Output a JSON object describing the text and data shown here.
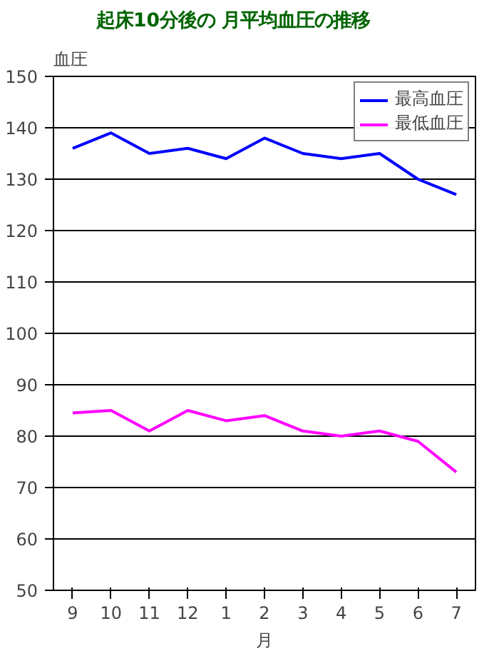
{
  "chart_data": {
    "type": "line",
    "title": "起床10分後の 月平均血圧の推移",
    "xlabel": "月",
    "ylabel": "血圧",
    "categories": [
      "9",
      "10",
      "11",
      "12",
      "1",
      "2",
      "3",
      "4",
      "5",
      "6",
      "7"
    ],
    "series": [
      {
        "name": "最高血圧",
        "color": "#0000ff",
        "values": [
          136,
          139,
          135,
          136,
          134,
          138,
          135,
          134,
          135,
          130,
          127
        ]
      },
      {
        "name": "最低血圧",
        "color": "#ff00ff",
        "values": [
          84.5,
          85,
          81,
          85,
          83,
          84,
          81,
          80,
          81,
          79,
          73
        ]
      }
    ],
    "ylim": [
      50,
      150
    ],
    "yticks": [
      50,
      60,
      70,
      80,
      90,
      100,
      110,
      120,
      130,
      140,
      150
    ],
    "grid": "y",
    "legend": "top right"
  }
}
